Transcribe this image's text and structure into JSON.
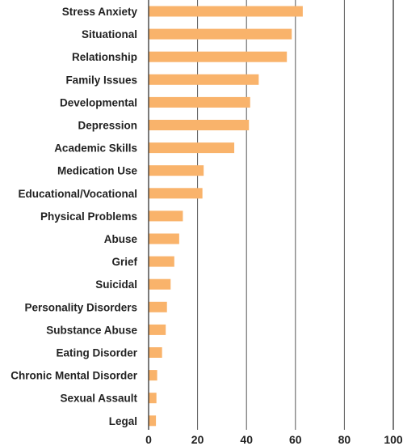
{
  "chart_data": {
    "type": "bar",
    "orientation": "horizontal",
    "categories": [
      "Stress Anxiety",
      "Situational",
      "Relationship",
      "Family Issues",
      "Developmental",
      "Depression",
      "Academic Skills",
      "Medication Use",
      "Educational/Vocational",
      "Physical Problems",
      "Abuse",
      "Grief",
      "Suicidal",
      "Personality Disorders",
      "Substance Abuse",
      "Eating Disorder",
      "Chronic Mental Disorder",
      "Sexual Assault",
      "Legal"
    ],
    "values": [
      63,
      58.5,
      56.5,
      45,
      41.5,
      41,
      35,
      22.5,
      22,
      14,
      12.5,
      10.5,
      9,
      7.5,
      7,
      5.5,
      3.5,
      3.2,
      3
    ],
    "xlim": [
      0,
      100
    ],
    "xticks": [
      0,
      20,
      40,
      60,
      80,
      100
    ],
    "title": "",
    "xlabel": "",
    "ylabel": "",
    "grid": "vertical",
    "bar_color": "#f9b36b",
    "grid_color": "#555555"
  }
}
